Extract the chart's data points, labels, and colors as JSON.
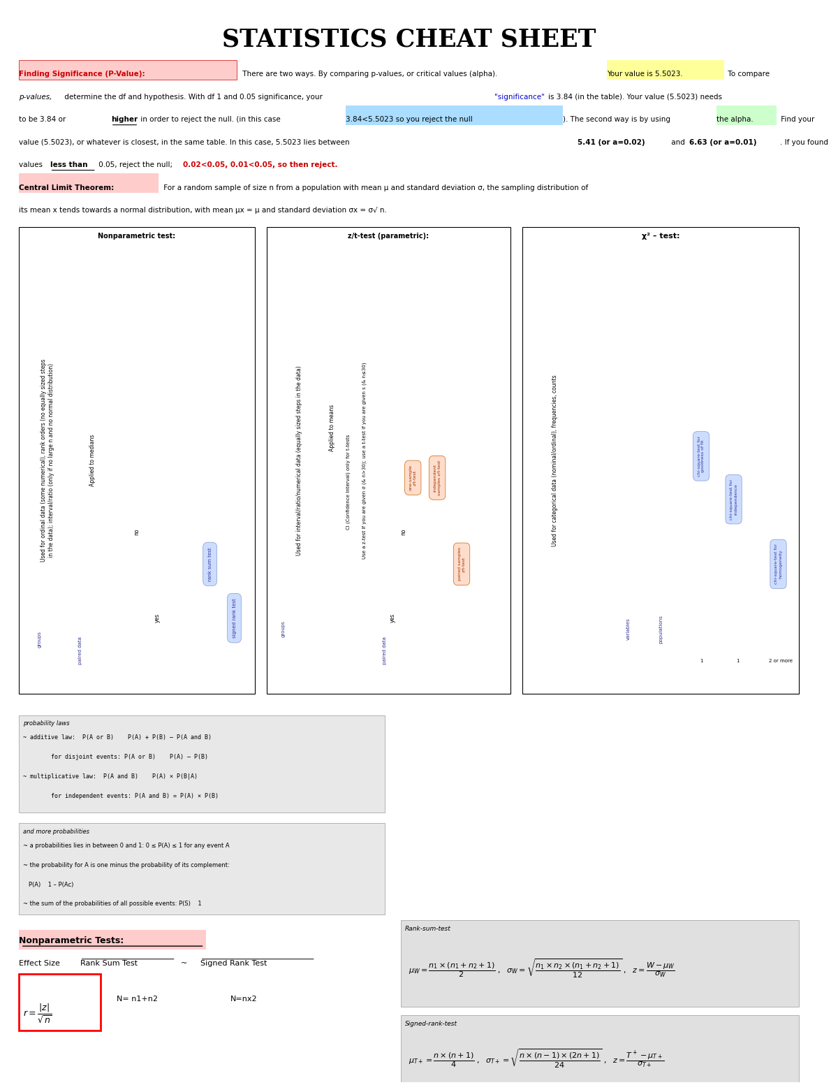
{
  "title": "STATISTICS CHEAT SHEET",
  "bg_color": "#ffffff",
  "page_width": 12.0,
  "page_height": 15.53,
  "prob_box_lines": [
    "~ additive law:  P(A or B)    P(A) + P(B) – P(A and B)",
    "        for disjoint events: P(A or B)    P(A) – P(B)",
    "~ multiplicative law:  P(A and B)    P(A) × P(B|A)",
    "        for independent events: P(A and B) = P(A) × P(B)"
  ],
  "more_prob_lines": [
    "~ a probabilities lies in between 0 and 1: 0 ≤ P(A) ≤ 1 for any event A",
    "~ the probability for A is one minus the probability of its complement:",
    "   P(A)    1 – P(Ac)",
    "~ the sum of the probabilities of all possible events: P(S)    1"
  ]
}
